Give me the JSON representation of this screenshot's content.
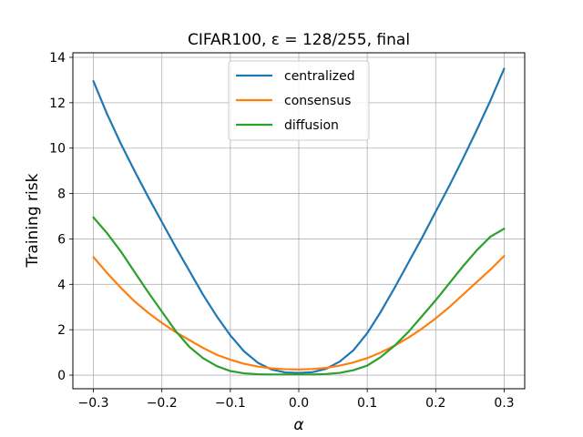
{
  "chart_data": {
    "type": "line",
    "title": "CIFAR100, ε = 128/255, final",
    "xlabel": "α",
    "ylabel": "Training risk",
    "xlim": [
      -0.33,
      0.33
    ],
    "ylim": [
      -0.6,
      14.2
    ],
    "xticks": [
      -0.3,
      -0.2,
      -0.1,
      0.0,
      0.1,
      0.2,
      0.3
    ],
    "xtick_labels": [
      "−0.3",
      "−0.2",
      "−0.1",
      "0.0",
      "0.1",
      "0.2",
      "0.3"
    ],
    "yticks": [
      0,
      2,
      4,
      6,
      8,
      10,
      12,
      14
    ],
    "ytick_labels": [
      "0",
      "2",
      "4",
      "6",
      "8",
      "10",
      "12",
      "14"
    ],
    "grid": true,
    "legend_position": "top-center",
    "x": [
      -0.3,
      -0.28,
      -0.26,
      -0.24,
      -0.22,
      -0.2,
      -0.18,
      -0.16,
      -0.14,
      -0.12,
      -0.1,
      -0.08,
      -0.06,
      -0.04,
      -0.02,
      0.0,
      0.02,
      0.04,
      0.06,
      0.08,
      0.1,
      0.12,
      0.14,
      0.16,
      0.18,
      0.2,
      0.22,
      0.24,
      0.26,
      0.28,
      0.3
    ],
    "series": [
      {
        "name": "centralized",
        "color": "#1f77b4",
        "values": [
          12.95,
          11.5,
          10.2,
          9.0,
          7.85,
          6.75,
          5.65,
          4.6,
          3.55,
          2.6,
          1.75,
          1.05,
          0.55,
          0.25,
          0.12,
          0.1,
          0.13,
          0.28,
          0.6,
          1.1,
          1.85,
          2.8,
          3.85,
          4.95,
          6.05,
          7.2,
          8.35,
          9.55,
          10.8,
          12.1,
          13.5
        ]
      },
      {
        "name": "consensus",
        "color": "#ff7f0e",
        "values": [
          5.2,
          4.5,
          3.85,
          3.25,
          2.75,
          2.3,
          1.9,
          1.55,
          1.2,
          0.9,
          0.68,
          0.5,
          0.38,
          0.3,
          0.26,
          0.25,
          0.27,
          0.32,
          0.42,
          0.56,
          0.75,
          1.0,
          1.3,
          1.65,
          2.05,
          2.5,
          3.0,
          3.55,
          4.1,
          4.65,
          5.25
        ]
      },
      {
        "name": "diffusion",
        "color": "#2ca02c",
        "values": [
          6.95,
          6.25,
          5.45,
          4.55,
          3.65,
          2.8,
          1.95,
          1.25,
          0.75,
          0.4,
          0.18,
          0.08,
          0.04,
          0.03,
          0.03,
          0.03,
          0.03,
          0.05,
          0.1,
          0.22,
          0.42,
          0.8,
          1.3,
          1.9,
          2.6,
          3.3,
          4.05,
          4.8,
          5.5,
          6.1,
          6.45
        ]
      }
    ]
  }
}
